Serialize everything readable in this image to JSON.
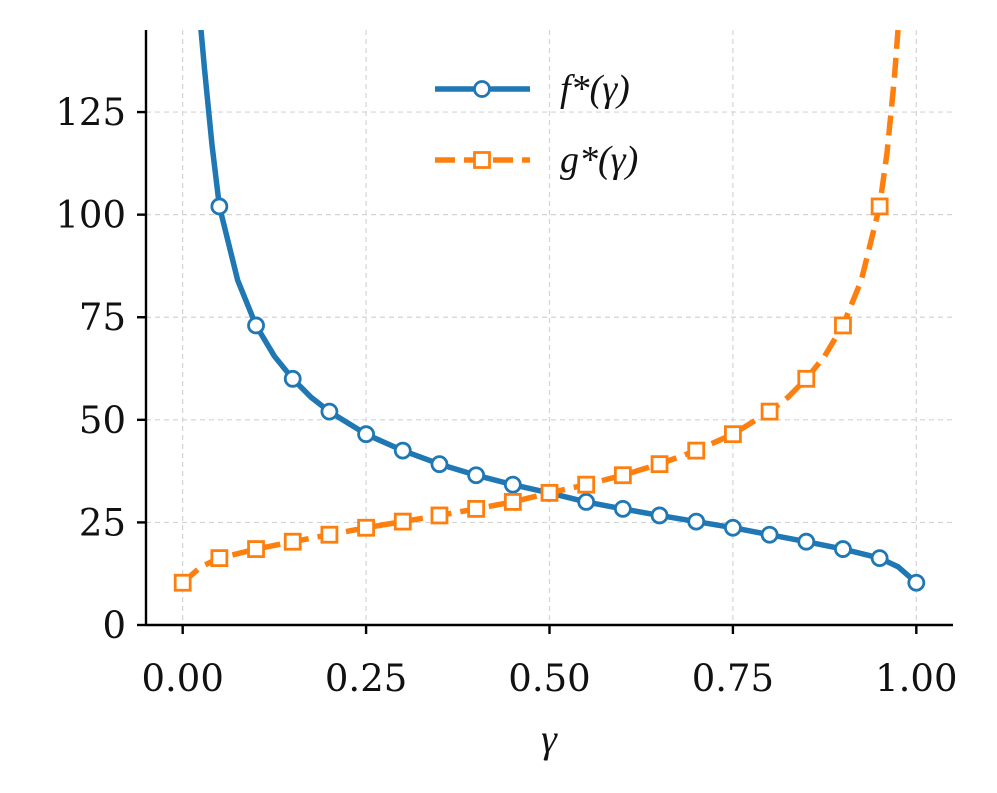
{
  "chart_data": {
    "type": "line",
    "title": "",
    "xlabel": "γ",
    "ylabel": "",
    "xlim": [
      -0.05,
      1.05
    ],
    "ylim": [
      0,
      145
    ],
    "x_ticks": [
      0.0,
      0.25,
      0.5,
      0.75,
      1.0
    ],
    "x_tick_labels": [
      "0.00",
      "0.25",
      "0.50",
      "0.75",
      "1.00"
    ],
    "y_ticks": [
      0,
      25,
      50,
      75,
      100,
      125
    ],
    "y_tick_labels": [
      "0",
      "25",
      "50",
      "75",
      "100",
      "125"
    ],
    "grid": true,
    "legend_position": "top-center",
    "series": [
      {
        "name": "f*(γ)",
        "label_base": "f",
        "color": "#1f77b4",
        "line_style": "solid",
        "marker": "circle",
        "curve_x": [
          0.025,
          0.03,
          0.04,
          0.05,
          0.075,
          0.1,
          0.125,
          0.15,
          0.175,
          0.2,
          0.25,
          0.3,
          0.35,
          0.4,
          0.45,
          0.5,
          0.55,
          0.6,
          0.65,
          0.7,
          0.75,
          0.8,
          0.85,
          0.9,
          0.95,
          0.975,
          1.0
        ],
        "curve_y": [
          145,
          135,
          117,
          102,
          84,
          73,
          65.5,
          60,
          55.5,
          52,
          46.5,
          42.5,
          39.2,
          36.5,
          34.2,
          32.2,
          30,
          28.3,
          26.7,
          25.2,
          23.7,
          22,
          20.3,
          18.5,
          16.3,
          14.2,
          10.3
        ],
        "marker_x": [
          0.05,
          0.1,
          0.15,
          0.2,
          0.25,
          0.3,
          0.35,
          0.4,
          0.45,
          0.5,
          0.55,
          0.6,
          0.65,
          0.7,
          0.75,
          0.8,
          0.85,
          0.9,
          0.95,
          1.0
        ],
        "marker_y": [
          102,
          73,
          60,
          52,
          46.5,
          42.5,
          39.2,
          36.5,
          34.2,
          32.2,
          30,
          28.3,
          26.7,
          25.2,
          23.7,
          22,
          20.3,
          18.5,
          16.3,
          10.3
        ]
      },
      {
        "name": "g*(γ)",
        "label_base": "g",
        "color": "#ff7f0e",
        "line_style": "dashed",
        "marker": "square",
        "curve_x": [
          0.0,
          0.025,
          0.05,
          0.1,
          0.15,
          0.2,
          0.25,
          0.3,
          0.35,
          0.4,
          0.45,
          0.5,
          0.55,
          0.6,
          0.65,
          0.7,
          0.75,
          0.8,
          0.825,
          0.85,
          0.875,
          0.9,
          0.925,
          0.95,
          0.96,
          0.97,
          0.975
        ],
        "curve_y": [
          10.3,
          14.2,
          16.3,
          18.5,
          20.3,
          22,
          23.7,
          25.2,
          26.7,
          28.3,
          30,
          32.2,
          34.2,
          36.5,
          39.2,
          42.5,
          46.5,
          52,
          55.5,
          60,
          65.5,
          73,
          84,
          102,
          115,
          133,
          145
        ],
        "marker_x": [
          0.0,
          0.05,
          0.1,
          0.15,
          0.2,
          0.25,
          0.3,
          0.35,
          0.4,
          0.45,
          0.5,
          0.55,
          0.6,
          0.65,
          0.7,
          0.75,
          0.8,
          0.85,
          0.9,
          0.95
        ],
        "marker_y": [
          10.3,
          16.3,
          18.5,
          20.3,
          22,
          23.7,
          25.2,
          26.7,
          28.3,
          30,
          32.2,
          34.2,
          36.5,
          39.2,
          42.5,
          46.5,
          52,
          60,
          73,
          102
        ]
      }
    ]
  }
}
